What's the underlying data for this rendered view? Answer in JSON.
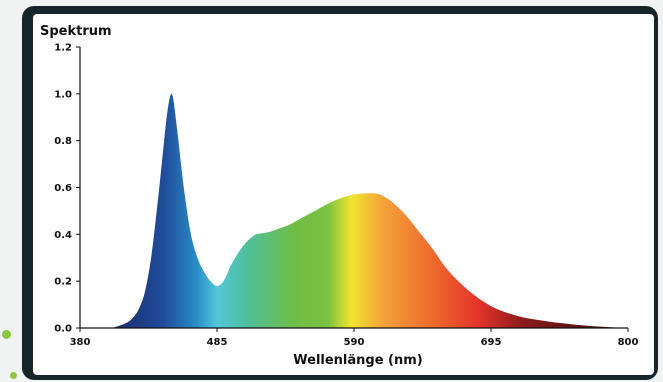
{
  "chart_data": {
    "type": "area",
    "title": "Spektrum",
    "xlabel": "Wellenlänge (nm)",
    "ylabel": "",
    "xlim": [
      380,
      800
    ],
    "ylim": [
      0,
      1.2
    ],
    "x_ticks": [
      380,
      485,
      590,
      695,
      800
    ],
    "y_ticks": [
      "0.0",
      "0.2",
      "0.4",
      "0.6",
      "0.8",
      "1.0",
      "1.2"
    ],
    "grid": false,
    "legend": "none",
    "series": [
      {
        "x": [
          405,
          410,
          415,
          420,
          425,
          430,
          435,
          440,
          443,
          446,
          448,
          450,
          452,
          455,
          460,
          465,
          470,
          475,
          480,
          485,
          490,
          495,
          500,
          505,
          510,
          515,
          520,
          525,
          530,
          540,
          550,
          560,
          570,
          580,
          590,
          600,
          605,
          610,
          615,
          620,
          630,
          640,
          650,
          660,
          670,
          680,
          690,
          700,
          710,
          720,
          730,
          740,
          750,
          760,
          770,
          780,
          790,
          800
        ],
        "y": [
          0.0,
          0.01,
          0.02,
          0.04,
          0.08,
          0.16,
          0.32,
          0.56,
          0.72,
          0.88,
          0.96,
          1.0,
          0.96,
          0.82,
          0.58,
          0.4,
          0.3,
          0.24,
          0.2,
          0.18,
          0.2,
          0.26,
          0.31,
          0.35,
          0.38,
          0.4,
          0.405,
          0.41,
          0.42,
          0.44,
          0.47,
          0.5,
          0.53,
          0.555,
          0.57,
          0.575,
          0.575,
          0.57,
          0.555,
          0.535,
          0.48,
          0.41,
          0.34,
          0.26,
          0.2,
          0.15,
          0.11,
          0.08,
          0.06,
          0.045,
          0.035,
          0.027,
          0.02,
          0.014,
          0.009,
          0.005,
          0.002,
          0.0
        ]
      }
    ],
    "gradient_stops": [
      {
        "x": 410,
        "color": "#1c2f6e"
      },
      {
        "x": 445,
        "color": "#1f4e9c"
      },
      {
        "x": 470,
        "color": "#2a8fc9"
      },
      {
        "x": 485,
        "color": "#52c6d8"
      },
      {
        "x": 510,
        "color": "#4fbf96"
      },
      {
        "x": 545,
        "color": "#6fbe44"
      },
      {
        "x": 570,
        "color": "#7bc142"
      },
      {
        "x": 588,
        "color": "#f2e52e"
      },
      {
        "x": 612,
        "color": "#f3a33a"
      },
      {
        "x": 650,
        "color": "#ee6a2c"
      },
      {
        "x": 685,
        "color": "#e3342a"
      },
      {
        "x": 720,
        "color": "#8b1b1d"
      },
      {
        "x": 790,
        "color": "#3a0d0f"
      }
    ]
  }
}
